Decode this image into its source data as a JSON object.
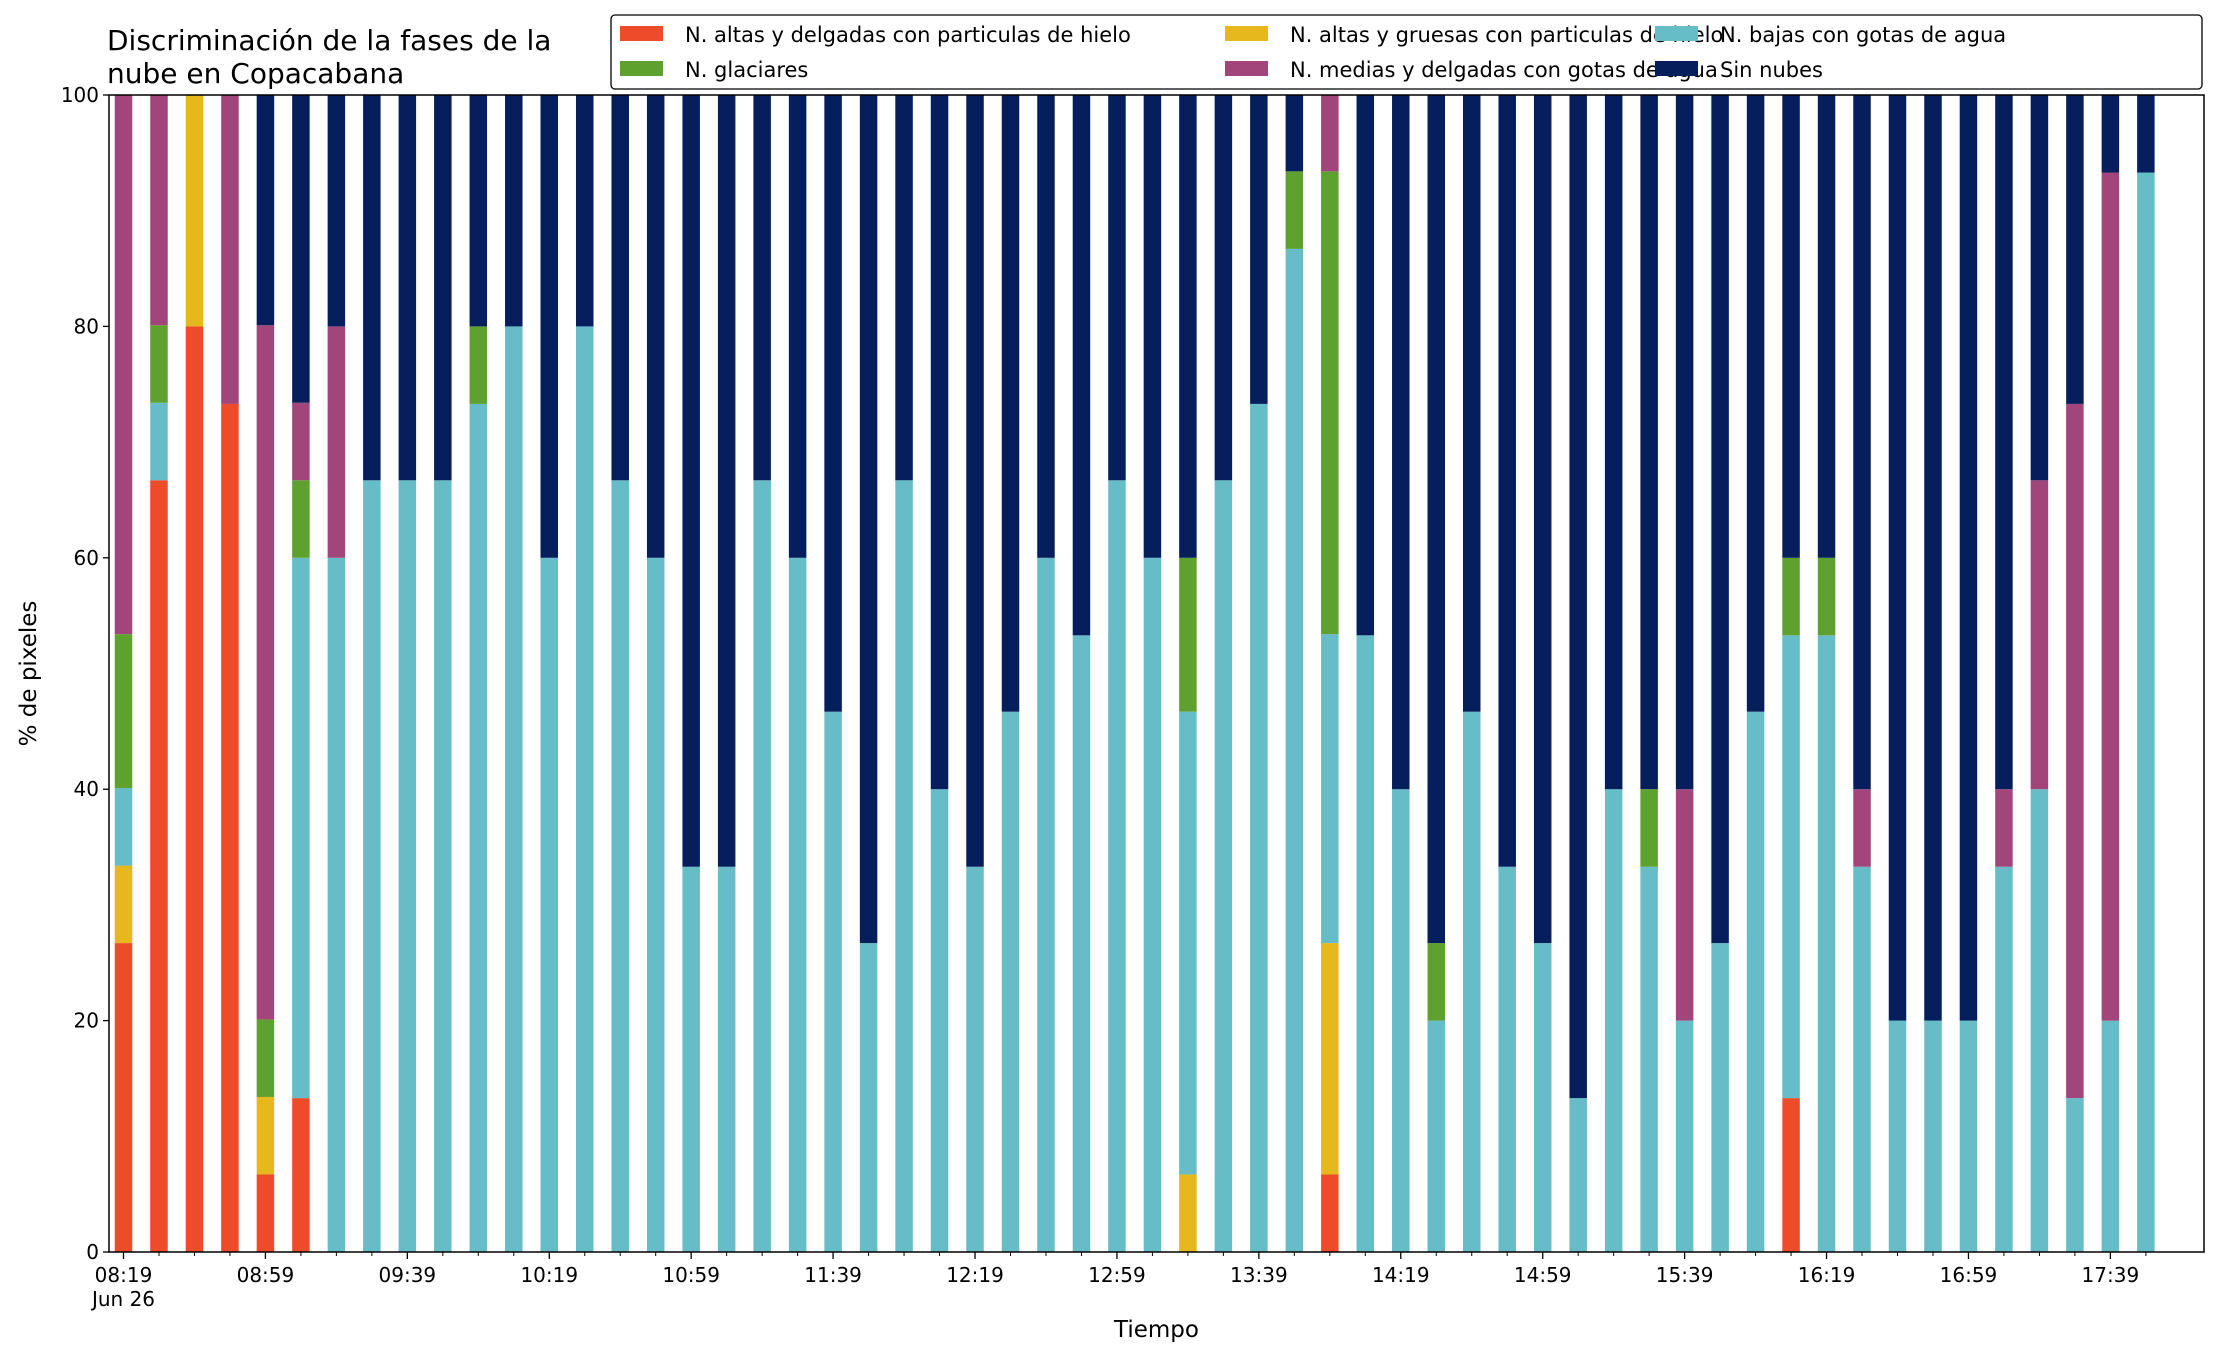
{
  "chart_data": {
    "type": "bar",
    "stacked": true,
    "title_lines": [
      "Discriminación de la fases de la",
      "nube en Copacabana"
    ],
    "xlabel": "Tiempo",
    "ylabel": "% de pixeles",
    "ylim": [
      0,
      100
    ],
    "yticks": [
      0,
      20,
      40,
      60,
      80,
      100
    ],
    "grid": false,
    "legend_position": "top-right",
    "date_label": "Jun 26",
    "x_tick_labels": [
      "08:19",
      "08:59",
      "09:39",
      "10:19",
      "10:59",
      "11:39",
      "12:19",
      "12:59",
      "13:39",
      "14:19",
      "14:59",
      "15:39",
      "16:19",
      "16:59",
      "17:39"
    ],
    "categories": [
      "08:19",
      "08:29",
      "08:39",
      "08:49",
      "08:59",
      "09:09",
      "09:19",
      "09:29",
      "09:39",
      "09:49",
      "09:59",
      "10:09",
      "10:19",
      "10:29",
      "10:39",
      "10:49",
      "10:59",
      "11:09",
      "11:19",
      "11:29",
      "11:39",
      "11:49",
      "11:59",
      "12:09",
      "12:19",
      "12:29",
      "12:39",
      "12:49",
      "12:59",
      "13:09",
      "13:19",
      "13:29",
      "13:39",
      "13:49",
      "13:59",
      "14:09",
      "14:19",
      "14:29",
      "14:39",
      "14:49",
      "14:59",
      "15:09",
      "15:19",
      "15:29",
      "15:39",
      "15:49",
      "15:59",
      "16:09",
      "16:19",
      "16:29",
      "16:39",
      "16:49",
      "16:59",
      "17:09",
      "17:19",
      "17:29",
      "17:39",
      "17:49"
    ],
    "series": [
      {
        "name": "N. altas y delgadas con particulas de hielo",
        "color": "#EE4B2B",
        "values": [
          26.7,
          66.7,
          80,
          73.3,
          6.7,
          13.3,
          0,
          0,
          0,
          0,
          0,
          0,
          0,
          0,
          0,
          0,
          0,
          0,
          0,
          0,
          0,
          0,
          0,
          0,
          0,
          0,
          0,
          0,
          0,
          0,
          0,
          0,
          0,
          0,
          6.7,
          0,
          0,
          0,
          0,
          0,
          0,
          0,
          0,
          0,
          0,
          0,
          0,
          13.3,
          0,
          0,
          0,
          0,
          0,
          0,
          0,
          0,
          0,
          0
        ]
      },
      {
        "name": "N. altas y gruesas con particulas de hielo",
        "color": "#E6B81E",
        "values": [
          6.7,
          0,
          20,
          0,
          6.7,
          0,
          0,
          0,
          0,
          0,
          0,
          0,
          0,
          0,
          0,
          0,
          0,
          0,
          0,
          0,
          0,
          0,
          0,
          0,
          0,
          0,
          0,
          0,
          0,
          0,
          6.7,
          0,
          0,
          0,
          20,
          0,
          0,
          0,
          0,
          0,
          0,
          0,
          0,
          0,
          0,
          0,
          0,
          0,
          0,
          0,
          0,
          0,
          0,
          0,
          0,
          0,
          0,
          0
        ]
      },
      {
        "name": "N. bajas con gotas de agua",
        "color": "#66BDC8",
        "values": [
          6.7,
          6.7,
          0,
          0,
          0,
          46.7,
          60,
          66.7,
          66.7,
          66.7,
          73.3,
          80,
          60,
          80,
          66.7,
          60,
          33.3,
          33.3,
          66.7,
          60,
          46.7,
          26.7,
          66.7,
          40,
          33.3,
          46.7,
          60,
          53.3,
          66.7,
          60,
          40,
          66.7,
          73.3,
          86.7,
          26.7,
          53.3,
          40,
          20,
          46.7,
          33.3,
          26.7,
          13.3,
          40,
          33.3,
          20,
          26.7,
          46.7,
          40,
          53.3,
          33.3,
          20,
          20,
          20,
          33.3,
          40,
          13.3,
          20,
          93.3
        ]
      },
      {
        "name": "N. glaciares",
        "color": "#5FA12F",
        "values": [
          13.3,
          6.7,
          0,
          0,
          6.7,
          6.7,
          0,
          0,
          0,
          0,
          6.7,
          0,
          0,
          0,
          0,
          0,
          0,
          0,
          0,
          0,
          0,
          0,
          0,
          0,
          0,
          0,
          0,
          0,
          0,
          0,
          13.3,
          0,
          0,
          6.7,
          40,
          0,
          0,
          6.7,
          0,
          0,
          0,
          0,
          0,
          6.7,
          0,
          0,
          0,
          6.7,
          6.7,
          0,
          0,
          0,
          0,
          0,
          0,
          0,
          0,
          0
        ]
      },
      {
        "name": "N. medias y delgadas con gotas de agua",
        "color": "#A1457A",
        "values": [
          46.7,
          20,
          0,
          26.7,
          60,
          6.7,
          20,
          0,
          0,
          0,
          0,
          0,
          0,
          0,
          0,
          0,
          0,
          0,
          0,
          0,
          0,
          0,
          0,
          0,
          0,
          0,
          0,
          0,
          0,
          0,
          0,
          0,
          0,
          0,
          6.7,
          0,
          0,
          0,
          0,
          0,
          0,
          0,
          0,
          0,
          20,
          0,
          0,
          0,
          0,
          6.7,
          0,
          0,
          0,
          6.7,
          26.7,
          60,
          73.3,
          0
        ]
      },
      {
        "name": "Sin nubes",
        "color": "#061F5C",
        "values": [
          0,
          0,
          0,
          0,
          20,
          26.7,
          20,
          33.3,
          33.3,
          33.3,
          20,
          20,
          40,
          20,
          33.3,
          40,
          66.7,
          66.7,
          33.3,
          40,
          53.3,
          73.3,
          33.3,
          60,
          66.7,
          53.3,
          40,
          46.7,
          33.3,
          40,
          40,
          33.3,
          26.7,
          6.7,
          0,
          46.7,
          60,
          73.3,
          53.3,
          66.7,
          73.3,
          86.7,
          60,
          60,
          60,
          73.3,
          53.3,
          40,
          40,
          60,
          80,
          80,
          80,
          60,
          33.3,
          26.7,
          6.7,
          6.7
        ]
      }
    ]
  }
}
